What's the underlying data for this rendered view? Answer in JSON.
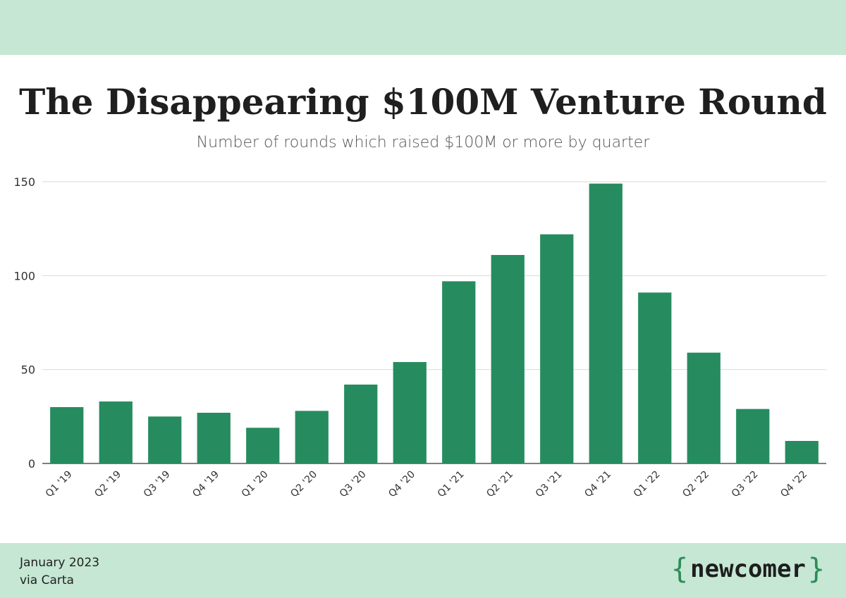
{
  "header": {
    "title": "The Disappearing $100M Venture Round",
    "subtitle": "Number of rounds which raised $100M or more by quarter"
  },
  "footer": {
    "date": "January 2023",
    "source": "via Carta",
    "brand_text": "newcomer",
    "brand_open": "{",
    "brand_close": "}"
  },
  "colors": {
    "bar": "#268c5f",
    "grid": "#d9d9d9",
    "band": "#c5e7d4"
  },
  "chart_data": {
    "type": "bar",
    "title": "The Disappearing $100M Venture Round",
    "subtitle": "Number of rounds which raised $100M or more by quarter",
    "xlabel": "",
    "ylabel": "",
    "categories": [
      "Q1 '19",
      "Q2 '19",
      "Q3 '19",
      "Q4 '19",
      "Q1 '20",
      "Q2 '20",
      "Q3 '20",
      "Q4 '20",
      "Q1 '21",
      "Q2 '21",
      "Q3 '21",
      "Q4 '21",
      "Q1 '22",
      "Q2 '22",
      "Q3 '22",
      "Q4 '22"
    ],
    "values": [
      30,
      33,
      25,
      27,
      19,
      28,
      42,
      54,
      97,
      111,
      122,
      149,
      91,
      59,
      29,
      12
    ],
    "ylim": [
      0,
      150
    ],
    "yticks": [
      0,
      50,
      100,
      150
    ],
    "grid": true,
    "legend": "none"
  }
}
